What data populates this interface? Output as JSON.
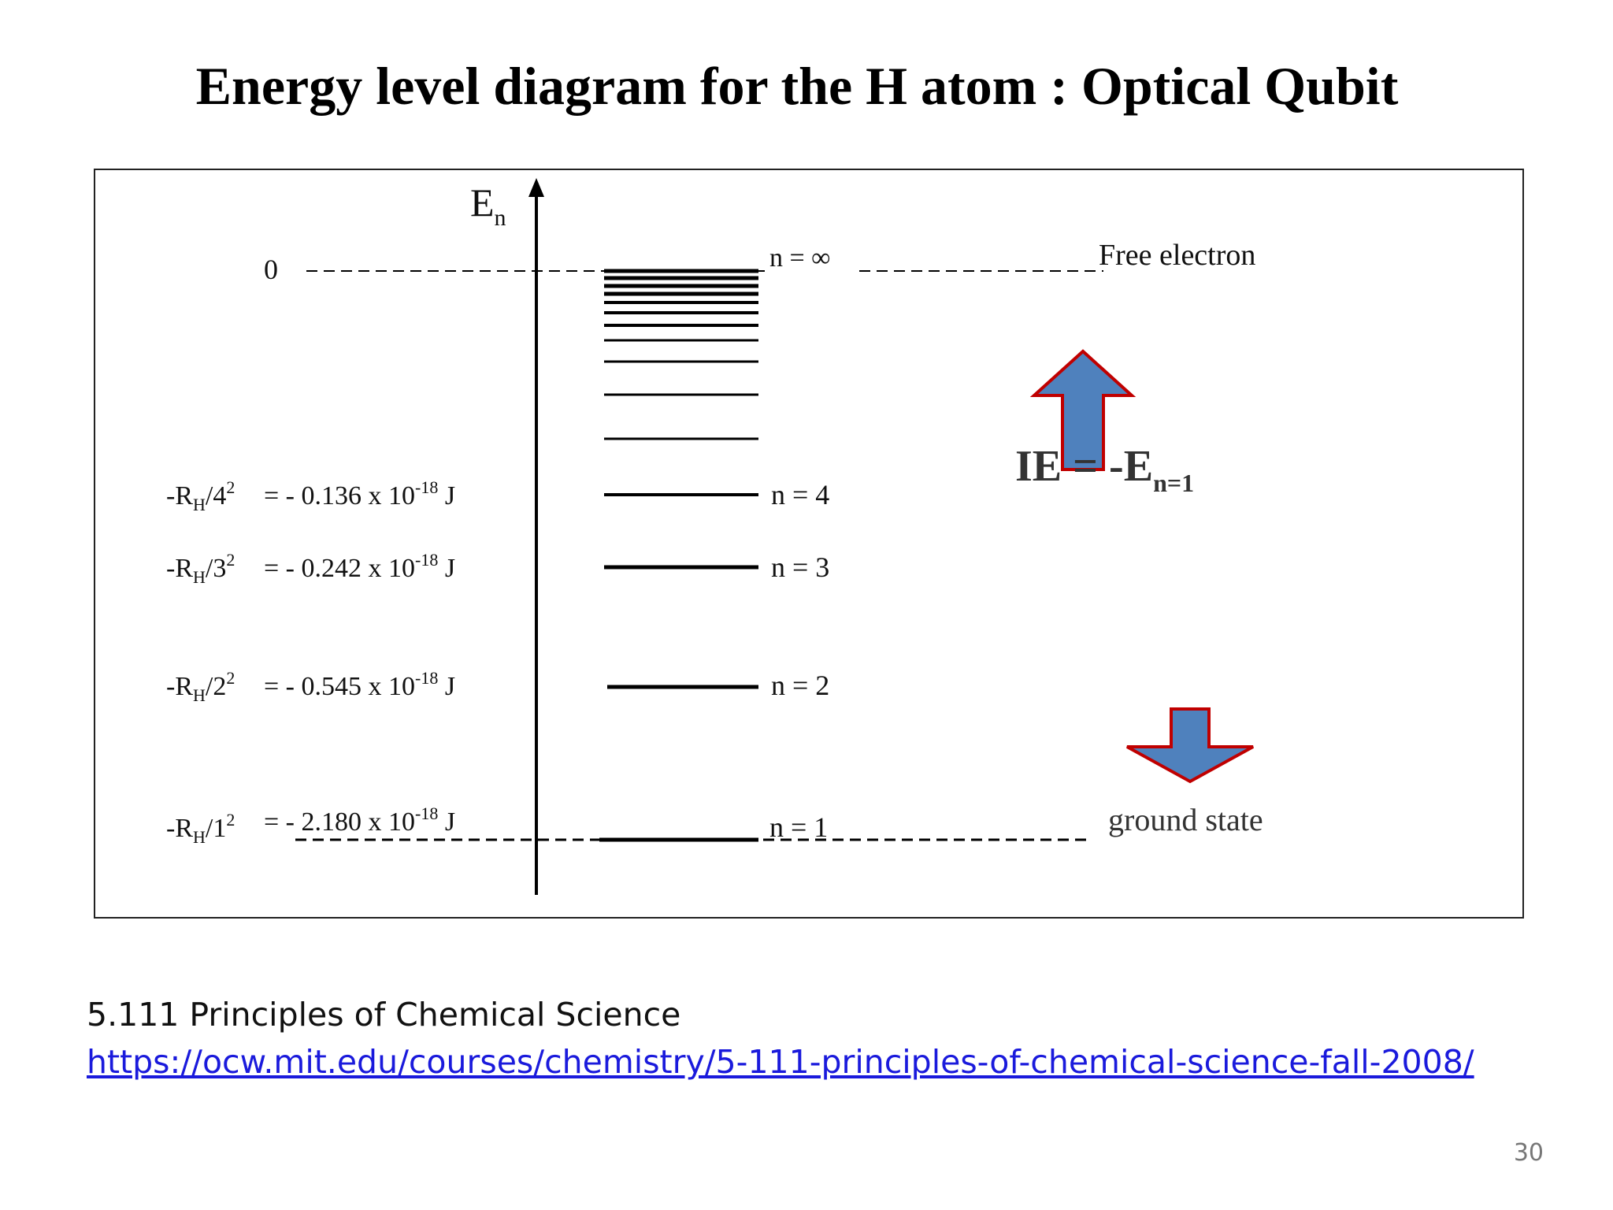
{
  "slide": {
    "title": "Energy level diagram for the H atom :  Optical Qubit",
    "page_number": "30"
  },
  "diagram": {
    "axis_label_main": "E",
    "axis_label_sub": "n",
    "zero_label": "0",
    "infinity_label": "n = ∞",
    "free_electron_label": "Free electron",
    "ground_state_label": "ground state",
    "ie_main": "IE = -E",
    "ie_sub": "n=1",
    "levels": [
      {
        "n": 4,
        "n_label": "n = 4",
        "lhs_pre": "-R",
        "lhs_sub": "H",
        "lhs_post": "/4",
        "lhs_sup": "2",
        "rhs_pre": "= - 0.136 x 10",
        "rhs_sup": "-18",
        "rhs_post": " J"
      },
      {
        "n": 3,
        "n_label": "n = 3",
        "lhs_pre": "-R",
        "lhs_sub": "H",
        "lhs_post": "/3",
        "lhs_sup": "2",
        "rhs_pre": "= - 0.242 x 10",
        "rhs_sup": "-18",
        "rhs_post": " J"
      },
      {
        "n": 2,
        "n_label": "n = 2",
        "lhs_pre": "-R",
        "lhs_sub": "H",
        "lhs_post": "/2",
        "lhs_sup": "2",
        "rhs_pre": "= - 0.545 x 10",
        "rhs_sup": "-18",
        "rhs_post": " J"
      },
      {
        "n": 1,
        "n_label": "n = 1",
        "lhs_pre": "-R",
        "lhs_sub": "H",
        "lhs_post": "/1",
        "lhs_sup": "2",
        "rhs_pre": "= - 2.180 x 10",
        "rhs_sup": "-18",
        "rhs_post": " J"
      }
    ],
    "colors": {
      "arrow_fill": "#4f81bd",
      "arrow_stroke": "#c00000",
      "line": "#000000"
    }
  },
  "caption": {
    "course": "5.111 Principles of Chemical Science",
    "link": "https://ocw.mit.edu/courses/chemistry/5-111-principles-of-chemical-science-fall-2008/"
  }
}
